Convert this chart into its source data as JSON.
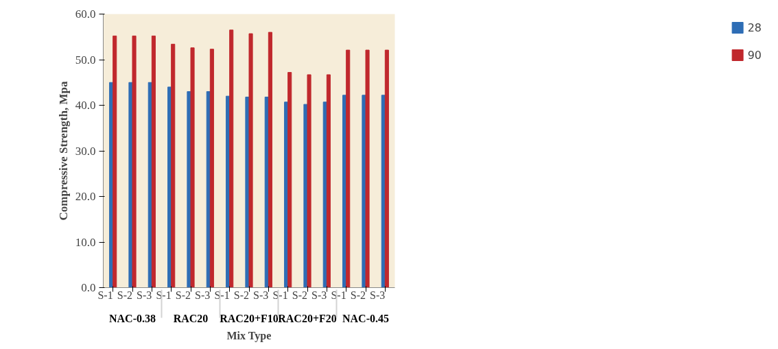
{
  "chart_data": {
    "type": "bar",
    "xlabel": "Mix Type",
    "ylabel": "Compressive Strength, Mpa",
    "categories": [
      "S-1",
      "S-2",
      "S-3",
      "S-1",
      "S-2",
      "S-3",
      "S-1",
      "S-2",
      "S-3",
      "S-1",
      "S-2",
      "S-3",
      "S-1",
      "S-2",
      "S-3"
    ],
    "annotations": [
      "NAC-0.38",
      "RAC20",
      "RAC20+F10",
      "RAC20+F20",
      "NAC-0.45"
    ],
    "series": [
      {
        "name": "28",
        "color": "#2e6db5",
        "values": [
          45.0,
          45.0,
          45.0,
          44.0,
          43.0,
          43.0,
          42.0,
          41.8,
          41.8,
          40.7,
          40.2,
          40.7,
          42.2,
          42.2,
          42.2
        ]
      },
      {
        "name": "90",
        "color": "#c0282d",
        "values": [
          55.2,
          55.2,
          55.2,
          53.4,
          52.6,
          52.3,
          56.5,
          55.7,
          56.0,
          47.2,
          46.7,
          46.7,
          52.1,
          52.1,
          52.1
        ]
      }
    ],
    "ylim": [
      0,
      60
    ],
    "yticks": [
      {
        "value": 0,
        "label": "0.0"
      },
      {
        "value": 10,
        "label": "10.0"
      },
      {
        "value": 20,
        "label": "20.0"
      },
      {
        "value": 30,
        "label": "30.0"
      },
      {
        "value": 40,
        "label": "40.0"
      },
      {
        "value": 50,
        "label": "50.0"
      },
      {
        "value": 60,
        "label": "60.0"
      }
    ],
    "grid": false,
    "legend": "right"
  }
}
